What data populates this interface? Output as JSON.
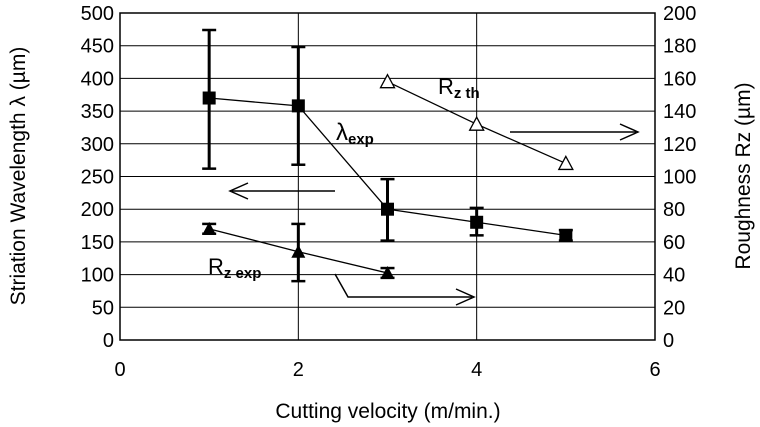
{
  "chart_data": {
    "type": "scatter",
    "xlabel": "Cutting velocity (m/min.)",
    "ylabel_left": "Striation Wavelength λ (µm)",
    "ylabel_right": "Roughness Rz (µm)",
    "xlim": [
      0,
      6
    ],
    "ylim_left": [
      0,
      500
    ],
    "ylim_right": [
      0,
      200
    ],
    "x_ticks": [
      "0",
      "2",
      "4",
      "6"
    ],
    "y_left_ticks": [
      "0",
      "50",
      "100",
      "150",
      "200",
      "250",
      "300",
      "350",
      "400",
      "450",
      "500"
    ],
    "y_right_ticks": [
      "0",
      "20",
      "40",
      "60",
      "80",
      "100",
      "120",
      "140",
      "160",
      "180",
      "200"
    ],
    "grid": true,
    "series": [
      {
        "name": "λexp",
        "label_main": "λ",
        "label_sub": "exp",
        "axis": "left",
        "marker": "square-filled",
        "x": [
          1,
          2,
          3,
          4,
          5
        ],
        "y": [
          370,
          358,
          200,
          180,
          160
        ],
        "err_low": [
          262,
          268,
          152,
          160,
          152
        ],
        "err_high": [
          474,
          448,
          246,
          202,
          168
        ]
      },
      {
        "name": "Rz exp",
        "label_main": "R",
        "label_sub": "z exp",
        "axis": "right",
        "marker": "triangle-filled",
        "x": [
          1,
          2,
          3
        ],
        "y": [
          68,
          54,
          41
        ],
        "err_low": [
          65,
          36,
          38
        ],
        "err_high": [
          71,
          71,
          44
        ]
      },
      {
        "name": "Rz th",
        "label_main": "R",
        "label_sub": "z th",
        "axis": "right",
        "marker": "triangle-open",
        "x": [
          3,
          4,
          5
        ],
        "y": [
          158,
          132,
          108
        ]
      }
    ]
  }
}
